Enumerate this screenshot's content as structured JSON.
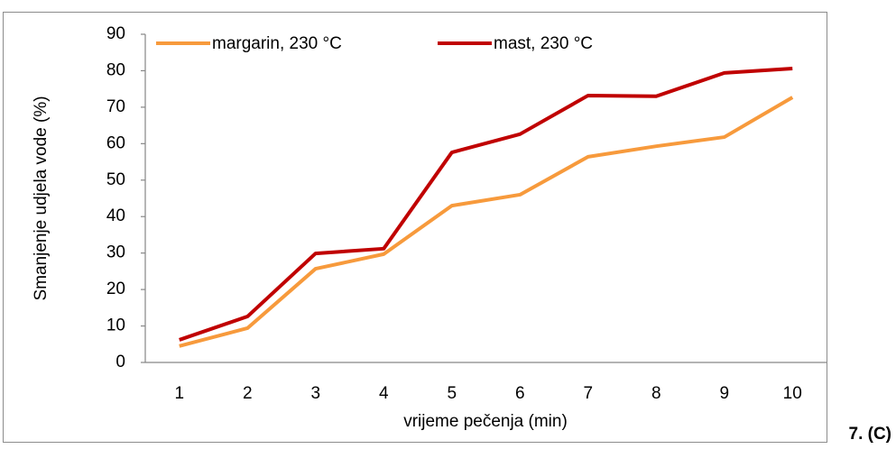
{
  "chart_data": {
    "type": "line",
    "x_label": "vrijeme pečenja (min)",
    "y_label": "Smanjenje udjela vode (%)",
    "categories": [
      "1",
      "2",
      "3",
      "4",
      "5",
      "6",
      "7",
      "8",
      "9",
      "10"
    ],
    "series": [
      {
        "name": "margarin, 230 °C",
        "color": "#f79a3c",
        "values": [
          4.5,
          9.4,
          25.7,
          29.7,
          43,
          46,
          56.4,
          59.3,
          61.8,
          72.7
        ]
      },
      {
        "name": "mast, 230 °C",
        "color": "#c00000",
        "values": [
          6.2,
          12.6,
          29.9,
          31.2,
          57.6,
          62.6,
          73.2,
          73,
          79.4,
          80.6
        ]
      }
    ],
    "ylim": [
      0,
      90
    ],
    "yticks": [
      0,
      10,
      20,
      30,
      40,
      50,
      60,
      70,
      80,
      90
    ],
    "grid": false,
    "legend": "top-left"
  },
  "caption": "7. (C)"
}
